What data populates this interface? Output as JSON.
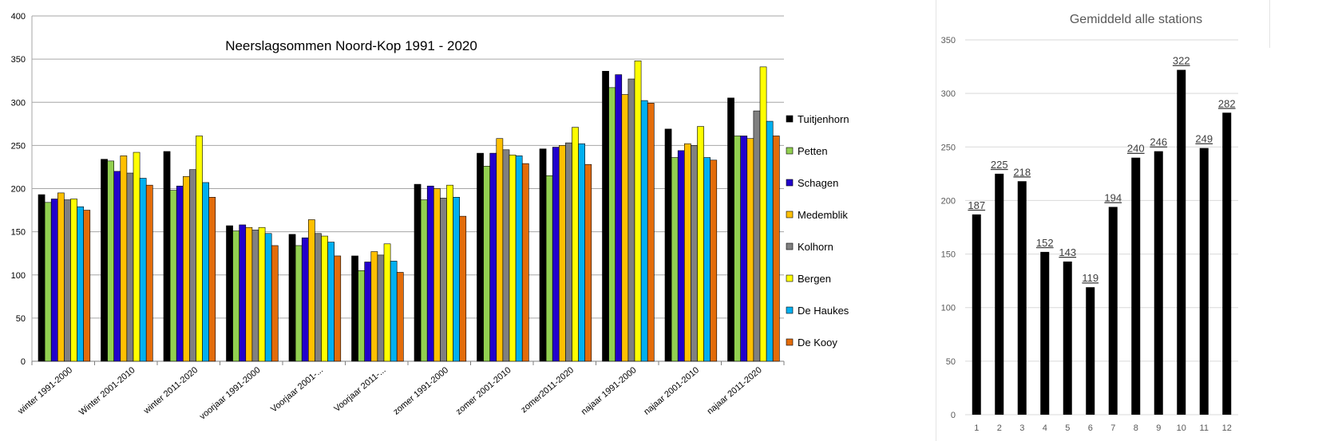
{
  "chart_data": [
    {
      "type": "bar",
      "title": "Neerslagsommen Noord-Kop 1991 - 2020",
      "xlabel": "",
      "ylabel": "",
      "ylim": [
        0,
        400
      ],
      "yticks": [
        0,
        50,
        100,
        150,
        200,
        250,
        300,
        350,
        400
      ],
      "grid": true,
      "legend_position": "right",
      "categories": [
        "winter 1991-2000",
        "Winter 2001-2010",
        "winter 2011-2020",
        "voorjaar 1991-2000",
        "Voorjaar 2001-...",
        "Voorjaar 2011-...",
        "zomer 1991-2000",
        "zomer 2001-2010",
        "zomer2011-2020",
        "najaar 1991-2000",
        "najaar 2001-2010",
        "najaar 2011-2020"
      ],
      "series": [
        {
          "name": "Tuitjenhorn",
          "color": "#000000",
          "values": [
            193,
            234,
            243,
            157,
            147,
            122,
            205,
            241,
            246,
            336,
            269,
            305
          ]
        },
        {
          "name": "Petten",
          "color": "#92d050",
          "values": [
            184,
            232,
            198,
            151,
            134,
            105,
            187,
            226,
            215,
            317,
            236,
            261
          ]
        },
        {
          "name": "Schagen",
          "color": "#2200cc",
          "values": [
            188,
            220,
            203,
            158,
            143,
            115,
            203,
            241,
            248,
            332,
            244,
            261
          ]
        },
        {
          "name": "Medemblik",
          "color": "#ffc000",
          "values": [
            195,
            238,
            214,
            155,
            164,
            127,
            200,
            258,
            250,
            309,
            252,
            258
          ]
        },
        {
          "name": "Kolhorn",
          "color": "#808080",
          "values": [
            187,
            218,
            222,
            152,
            148,
            123,
            189,
            245,
            253,
            327,
            250,
            290
          ]
        },
        {
          "name": "Bergen",
          "color": "#ffff00",
          "values": [
            188,
            242,
            261,
            155,
            145,
            136,
            204,
            239,
            271,
            348,
            272,
            341
          ]
        },
        {
          "name": "De Haukes",
          "color": "#00b0f0",
          "values": [
            179,
            212,
            207,
            148,
            138,
            116,
            190,
            238,
            252,
            302,
            236,
            278
          ]
        },
        {
          "name": "De Kooy",
          "color": "#e36c0a",
          "values": [
            175,
            204,
            190,
            134,
            122,
            103,
            168,
            229,
            228,
            299,
            233,
            261
          ]
        }
      ]
    },
    {
      "type": "bar",
      "title": "Gemiddeld alle stations",
      "xlabel": "",
      "ylabel": "",
      "ylim": [
        0,
        350
      ],
      "yticks": [
        0,
        50,
        100,
        150,
        200,
        250,
        300,
        350
      ],
      "grid": true,
      "bar_color": "#000000",
      "categories": [
        "1",
        "2",
        "3",
        "4",
        "5",
        "6",
        "7",
        "8",
        "9",
        "10",
        "11",
        "12"
      ],
      "values": [
        187,
        225,
        218,
        152,
        143,
        119,
        194,
        240,
        246,
        322,
        249,
        282
      ],
      "data_labels": [
        "187",
        "225",
        "218",
        "152",
        "143",
        "119",
        "194",
        "240",
        "246",
        "322",
        "249",
        "282"
      ]
    }
  ]
}
